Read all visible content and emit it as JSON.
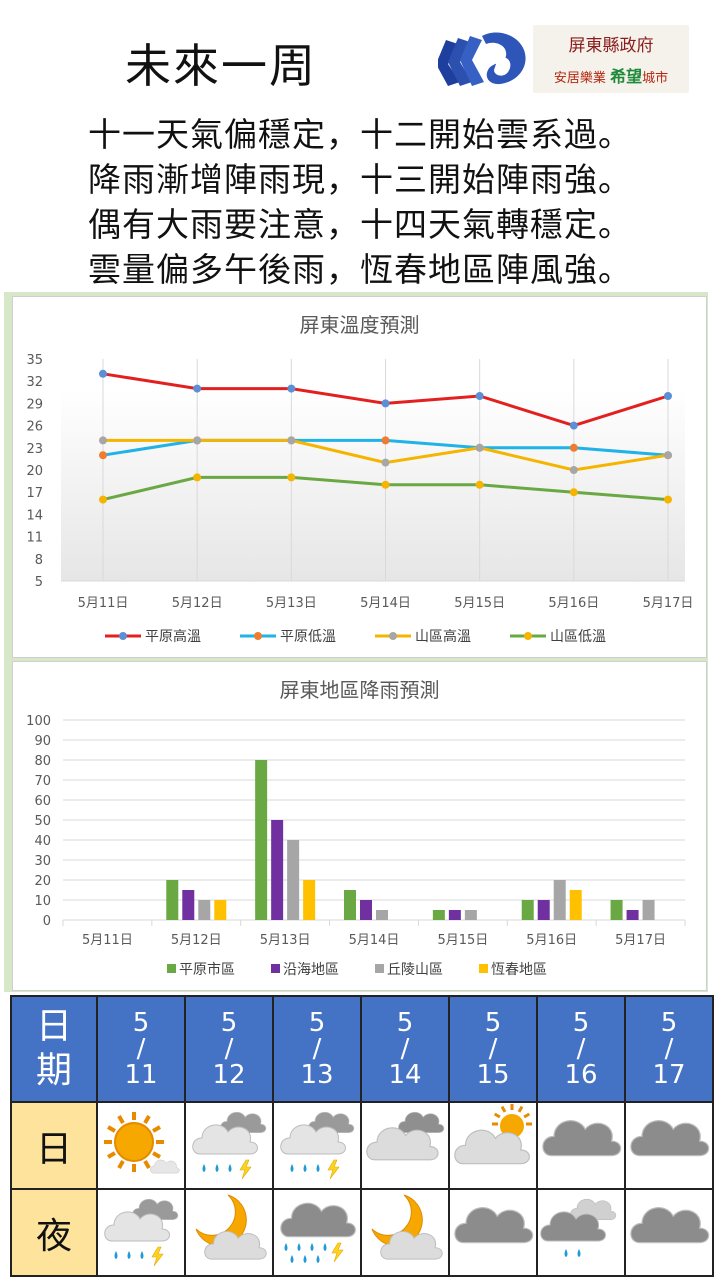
{
  "header": {
    "title": "未來一周",
    "gov_line1": "屏東縣政府",
    "gov_line2_a": "安居樂業",
    "gov_line2_b": "希望",
    "gov_line2_c": "城市"
  },
  "poem": [
    "十一天氣偏穩定，十二開始雲系過。",
    "降雨漸增陣雨現，十三開始陣雨強。",
    "偶有大雨要注意，十四天氣轉穩定。",
    "雲量偏多午後雨，恆春地區陣風強。"
  ],
  "colors": {
    "plain_high": "#e32020",
    "plain_low": "#21b2e8",
    "mountain_high": "#f4b400",
    "mountain_low": "#6aa843",
    "marker_grey": "#a6a6a6",
    "marker_blue": "#5b8fd6",
    "marker_orange": "#ed7d31",
    "rain_plain": "#6aa843",
    "rain_coast": "#7030a0",
    "rain_hill": "#a6a6a6",
    "rain_hengchun": "#ffc000",
    "table_header": "#4472c4",
    "table_side": "#fde39b"
  },
  "chart_data": [
    {
      "type": "line",
      "title": "屏東溫度預測",
      "categories": [
        "5月11日",
        "5月12日",
        "5月13日",
        "5月14日",
        "5月15日",
        "5月16日",
        "5月17日"
      ],
      "y_ticks": [
        5,
        8,
        11,
        14,
        17,
        20,
        23,
        26,
        29,
        32,
        35
      ],
      "ylim": [
        5,
        35
      ],
      "series": [
        {
          "name": "平原高溫",
          "values": [
            33,
            31,
            31,
            29,
            30,
            26,
            30
          ]
        },
        {
          "name": "平原低溫",
          "values": [
            22,
            24,
            24,
            24,
            23,
            23,
            22
          ]
        },
        {
          "name": "山區高溫",
          "values": [
            24,
            24,
            24,
            21,
            23,
            20,
            22
          ]
        },
        {
          "name": "山區低溫",
          "values": [
            16,
            19,
            19,
            18,
            18,
            17,
            16
          ]
        }
      ],
      "legend": "bottom"
    },
    {
      "type": "bar",
      "title": "屏東地區降雨預測",
      "categories": [
        "5月11日",
        "5月12日",
        "5月13日",
        "5月14日",
        "5月15日",
        "5月16日",
        "5月17日"
      ],
      "y_ticks": [
        0,
        10,
        20,
        30,
        40,
        50,
        60,
        70,
        80,
        90,
        100
      ],
      "ylim": [
        0,
        100
      ],
      "series": [
        {
          "name": "平原市區",
          "values": [
            0,
            20,
            80,
            15,
            5,
            10,
            10
          ]
        },
        {
          "name": "沿海地區",
          "values": [
            0,
            15,
            50,
            10,
            5,
            10,
            5
          ]
        },
        {
          "name": "丘陵山區",
          "values": [
            0,
            10,
            40,
            5,
            5,
            20,
            10
          ]
        },
        {
          "name": "恆春地區",
          "values": [
            0,
            10,
            20,
            0,
            0,
            15,
            0
          ]
        }
      ],
      "legend": "bottom"
    }
  ],
  "table": {
    "date_label": [
      "日",
      "期"
    ],
    "dates": [
      {
        "m": "5",
        "s": "/",
        "d": "11"
      },
      {
        "m": "5",
        "s": "/",
        "d": "12"
      },
      {
        "m": "5",
        "s": "/",
        "d": "13"
      },
      {
        "m": "5",
        "s": "/",
        "d": "14"
      },
      {
        "m": "5",
        "s": "/",
        "d": "15"
      },
      {
        "m": "5",
        "s": "/",
        "d": "16"
      },
      {
        "m": "5",
        "s": "/",
        "d": "17"
      }
    ],
    "day_label": "日",
    "night_label": "夜",
    "day_icons": [
      "sunny-icon",
      "cloudy-thunder-rain-icon",
      "cloudy-thunder-rain-icon",
      "cloudy-icon",
      "partly-cloudy-icon",
      "overcast-icon",
      "overcast-icon"
    ],
    "night_icons": [
      "cloudy-thunder-rain-icon",
      "moon-cloud-icon",
      "heavy-thunder-rain-icon",
      "moon-cloud-icon",
      "overcast-icon",
      "overcast-rain-icon",
      "overcast-icon"
    ]
  }
}
